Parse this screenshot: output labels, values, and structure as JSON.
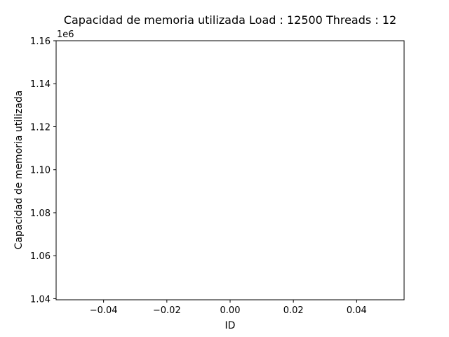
{
  "chart_data": {
    "type": "line",
    "title": "Capacidad de memoria utilizada Load : 12500 Threads : 12",
    "xlabel": "ID",
    "ylabel": "Capacidad de memoria utilizada",
    "y_offset_label": "1e6",
    "xlim": [
      -0.055,
      0.055
    ],
    "ylim": [
      1.0395,
      1.16
    ],
    "x_ticks": [
      -0.04,
      -0.02,
      0.0,
      0.02,
      0.04
    ],
    "x_tick_labels": [
      "−0.04",
      "−0.02",
      "0.00",
      "0.02",
      "0.04"
    ],
    "y_ticks": [
      1.04,
      1.06,
      1.08,
      1.1,
      1.12,
      1.14,
      1.16
    ],
    "y_tick_labels": [
      "1.04",
      "1.06",
      "1.08",
      "1.10",
      "1.12",
      "1.14",
      "1.16"
    ],
    "grid": false,
    "series": [
      {
        "x": [],
        "y": []
      }
    ]
  }
}
